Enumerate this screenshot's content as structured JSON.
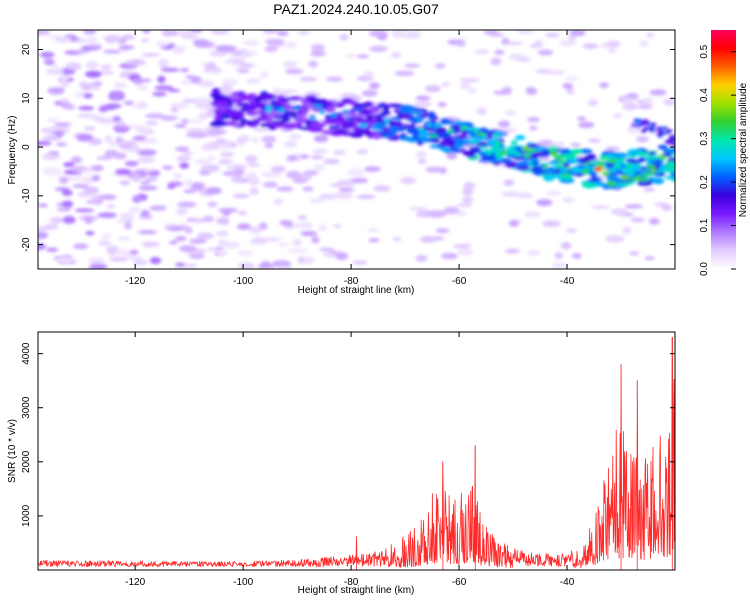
{
  "chart_data": [
    {
      "type": "heatmap",
      "title": "PAZ1.2024.240.10.05.G07",
      "xlabel": "Height of straight line (km)",
      "ylabel": "Frequency (Hz)",
      "xlim": [
        -138,
        -20
      ],
      "ylim": [
        -25,
        24
      ],
      "xticks": [
        -120,
        -100,
        -80,
        -60,
        -40
      ],
      "yticks": [
        -20,
        -10,
        0,
        10,
        20
      ],
      "colorbar": {
        "label": "Normalized spectral amplitude",
        "range": [
          0,
          0.55
        ],
        "ticks": [
          0.0,
          0.1,
          0.2,
          0.3,
          0.4,
          0.5
        ],
        "colormap": [
          "#ffffff",
          "#e2ccff",
          "#b07aff",
          "#7a1bff",
          "#3a00e0",
          "#0060ff",
          "#00c8ff",
          "#00e6b0",
          "#30d030",
          "#a0e000",
          "#ffd000",
          "#ff6000",
          "#ff0000",
          "#ff0060"
        ]
      },
      "ridge": {
        "description_points_x": [
          -100,
          -90,
          -80,
          -70,
          -60,
          -50,
          -40,
          -30,
          -20
        ],
        "description_points_y": [
          8,
          7,
          6,
          5,
          2,
          -1,
          -4,
          -5,
          -3
        ],
        "peak": {
          "x": -34,
          "y": -4.5,
          "amplitude": 0.5
        }
      }
    },
    {
      "type": "line",
      "xlabel": "Height of straight line (km)",
      "ylabel": "SNR (10 * v/v)",
      "xlim": [
        -138,
        -20
      ],
      "ylim": [
        0,
        4400
      ],
      "xticks": [
        -120,
        -100,
        -80,
        -60,
        -40
      ],
      "yticks": [
        1000,
        2000,
        3000,
        4000
      ],
      "color": "#ff2a2a",
      "envelope": {
        "x": [
          -138,
          -120,
          -100,
          -90,
          -82,
          -78,
          -74,
          -71,
          -68,
          -66,
          -64,
          -62,
          -60,
          -58,
          -56,
          -53,
          -50,
          -45,
          -40,
          -37,
          -35,
          -33,
          -31,
          -29,
          -27,
          -25,
          -23,
          -21,
          -20
        ],
        "y": [
          180,
          170,
          160,
          190,
          260,
          300,
          380,
          620,
          800,
          1100,
          1700,
          1500,
          1300,
          1900,
          1100,
          700,
          400,
          300,
          320,
          500,
          1100,
          1800,
          2800,
          2600,
          2200,
          2400,
          2800,
          3100,
          4100
        ]
      },
      "peaks": [
        {
          "x": -79,
          "y": 620
        },
        {
          "x": -63,
          "y": 2000
        },
        {
          "x": -57,
          "y": 2300
        },
        {
          "x": -30,
          "y": 3800
        },
        {
          "x": -27,
          "y": 3500
        },
        {
          "x": -20.5,
          "y": 4300
        }
      ]
    }
  ]
}
